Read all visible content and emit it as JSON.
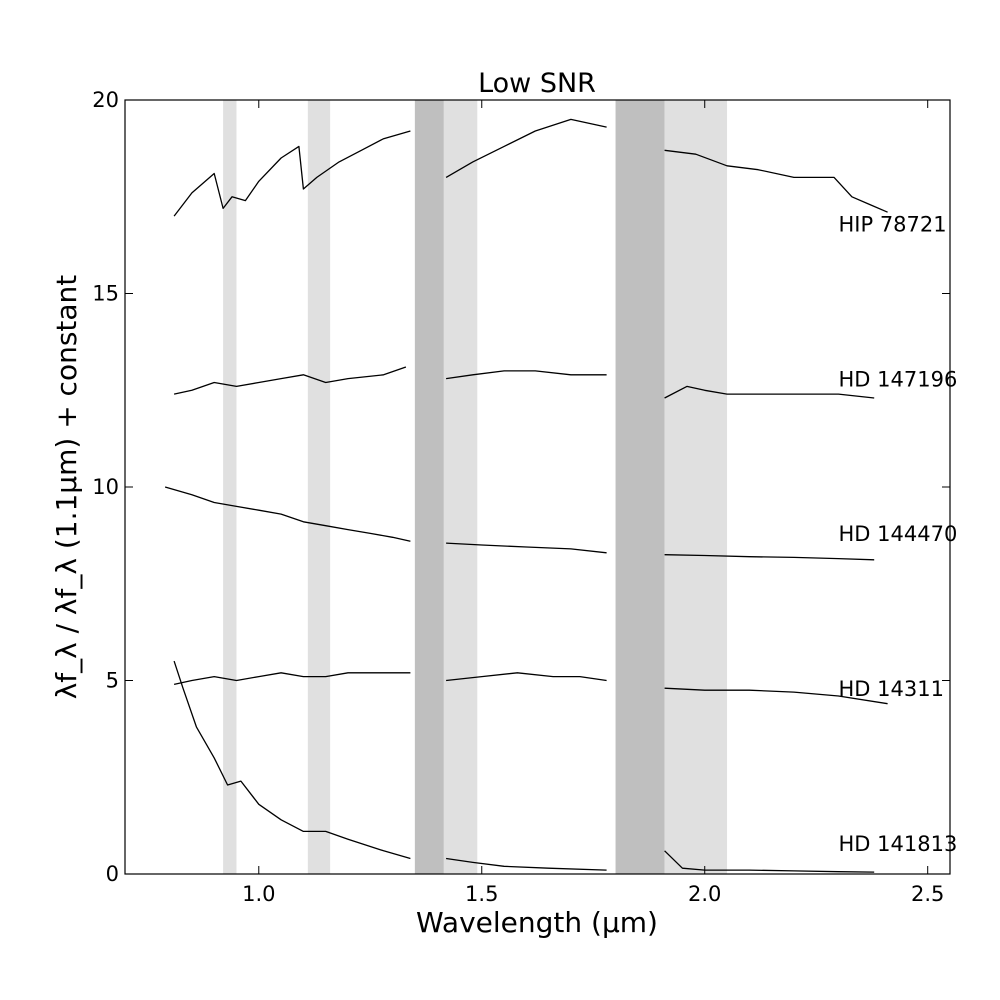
{
  "chart_data": {
    "type": "line",
    "title": "Low SNR",
    "xlabel": "Wavelength (μm)",
    "ylabel": "λf_λ / λf_λ (1.1μm) + constant",
    "xlim": [
      0.7,
      2.55
    ],
    "ylim": [
      0,
      20
    ],
    "x_ticks": [
      {
        "value": 1.0,
        "label": "1.0"
      },
      {
        "value": 1.5,
        "label": "1.5"
      },
      {
        "value": 2.0,
        "label": "2.0"
      },
      {
        "value": 2.5,
        "label": "2.5"
      }
    ],
    "y_ticks": [
      {
        "value": 0,
        "label": "0"
      },
      {
        "value": 5,
        "label": "5"
      },
      {
        "value": 10,
        "label": "10"
      },
      {
        "value": 15,
        "label": "15"
      },
      {
        "value": 20,
        "label": "20"
      }
    ],
    "grid": false,
    "bands": [
      {
        "x0": 0.92,
        "x1": 0.95,
        "shade": "light",
        "color": "#e0e0e0"
      },
      {
        "x0": 1.11,
        "x1": 1.16,
        "shade": "light",
        "color": "#e0e0e0"
      },
      {
        "x0": 1.35,
        "x1": 1.415,
        "shade": "dark",
        "color": "#bfbfbf"
      },
      {
        "x0": 1.415,
        "x1": 1.49,
        "shade": "light",
        "color": "#e0e0e0"
      },
      {
        "x0": 1.8,
        "x1": 1.91,
        "shade": "dark",
        "color": "#bfbfbf"
      },
      {
        "x0": 1.91,
        "x1": 2.05,
        "shade": "light",
        "color": "#e0e0e0"
      }
    ],
    "series": [
      {
        "name": "HIP 78721",
        "label_pos": [
          2.3,
          16.6
        ],
        "segments": [
          {
            "x": [
              0.81,
              0.85,
              0.9,
              0.92,
              0.94,
              0.97,
              1.0,
              1.05,
              1.09,
              1.1,
              1.13,
              1.18,
              1.23,
              1.28,
              1.34
            ],
            "y": [
              17.0,
              17.6,
              18.1,
              17.2,
              17.5,
              17.4,
              17.9,
              18.5,
              18.8,
              17.7,
              18.0,
              18.4,
              18.7,
              19.0,
              19.2
            ]
          },
          {
            "x": [
              1.42,
              1.48,
              1.55,
              1.62,
              1.7,
              1.78
            ],
            "y": [
              18.0,
              18.4,
              18.8,
              19.2,
              19.5,
              19.3
            ]
          },
          {
            "x": [
              1.91,
              1.98,
              2.05,
              2.12,
              2.2,
              2.29,
              2.33,
              2.37,
              2.41
            ],
            "y": [
              18.7,
              18.6,
              18.3,
              18.2,
              18.0,
              18.0,
              17.5,
              17.3,
              17.1
            ]
          }
        ]
      },
      {
        "name": "HD 147196",
        "label_pos": [
          2.3,
          12.6
        ],
        "segments": [
          {
            "x": [
              0.81,
              0.85,
              0.9,
              0.95,
              1.0,
              1.05,
              1.1,
              1.15,
              1.2,
              1.28,
              1.33
            ],
            "y": [
              12.4,
              12.5,
              12.7,
              12.6,
              12.7,
              12.8,
              12.9,
              12.7,
              12.8,
              12.9,
              13.1
            ]
          },
          {
            "x": [
              1.42,
              1.48,
              1.55,
              1.62,
              1.7,
              1.78
            ],
            "y": [
              12.8,
              12.9,
              13.0,
              13.0,
              12.9,
              12.9
            ]
          },
          {
            "x": [
              1.91,
              1.96,
              2.0,
              2.05,
              2.1,
              2.2,
              2.3,
              2.38
            ],
            "y": [
              12.3,
              12.6,
              12.5,
              12.4,
              12.4,
              12.4,
              12.4,
              12.3
            ]
          }
        ]
      },
      {
        "name": "HD 144470",
        "label_pos": [
          2.3,
          8.6
        ],
        "segments": [
          {
            "x": [
              0.79,
              0.85,
              0.9,
              0.95,
              1.0,
              1.05,
              1.1,
              1.15,
              1.2,
              1.25,
              1.3,
              1.34
            ],
            "y": [
              10.0,
              9.8,
              9.6,
              9.5,
              9.4,
              9.3,
              9.1,
              9.0,
              8.9,
              8.8,
              8.7,
              8.6
            ]
          },
          {
            "x": [
              1.42,
              1.5,
              1.6,
              1.7,
              1.78
            ],
            "y": [
              8.55,
              8.5,
              8.45,
              8.4,
              8.3
            ]
          },
          {
            "x": [
              1.91,
              2.0,
              2.1,
              2.2,
              2.3,
              2.38
            ],
            "y": [
              8.25,
              8.23,
              8.2,
              8.18,
              8.15,
              8.12
            ]
          }
        ]
      },
      {
        "name": "HD 14311",
        "label_pos": [
          2.3,
          4.6
        ],
        "segments": [
          {
            "x": [
              0.81,
              0.85,
              0.9,
              0.95,
              1.0,
              1.05,
              1.1,
              1.15,
              1.2,
              1.28,
              1.34
            ],
            "y": [
              4.9,
              5.0,
              5.1,
              5.0,
              5.1,
              5.2,
              5.1,
              5.1,
              5.2,
              5.2,
              5.2
            ]
          },
          {
            "x": [
              1.42,
              1.5,
              1.58,
              1.66,
              1.72,
              1.78
            ],
            "y": [
              5.0,
              5.1,
              5.2,
              5.1,
              5.1,
              5.0
            ]
          },
          {
            "x": [
              1.91,
              2.0,
              2.1,
              2.2,
              2.3,
              2.41
            ],
            "y": [
              4.8,
              4.75,
              4.75,
              4.7,
              4.6,
              4.4
            ]
          }
        ]
      },
      {
        "name": "HD 141813",
        "label_pos": [
          2.3,
          0.6
        ],
        "segments": [
          {
            "x": [
              0.81,
              0.83,
              0.86,
              0.9,
              0.93,
              0.96,
              1.0,
              1.05,
              1.1,
              1.15,
              1.2,
              1.28,
              1.34
            ],
            "y": [
              5.5,
              4.8,
              3.8,
              3.0,
              2.3,
              2.4,
              1.8,
              1.4,
              1.1,
              1.1,
              0.9,
              0.6,
              0.4
            ]
          },
          {
            "x": [
              1.42,
              1.48,
              1.55,
              1.65,
              1.78
            ],
            "y": [
              0.4,
              0.3,
              0.2,
              0.15,
              0.1
            ]
          },
          {
            "x": [
              1.91,
              1.95,
              2.0,
              2.1,
              2.2,
              2.3,
              2.38
            ],
            "y": [
              0.6,
              0.15,
              0.1,
              0.1,
              0.08,
              0.06,
              0.05
            ]
          }
        ]
      }
    ]
  }
}
